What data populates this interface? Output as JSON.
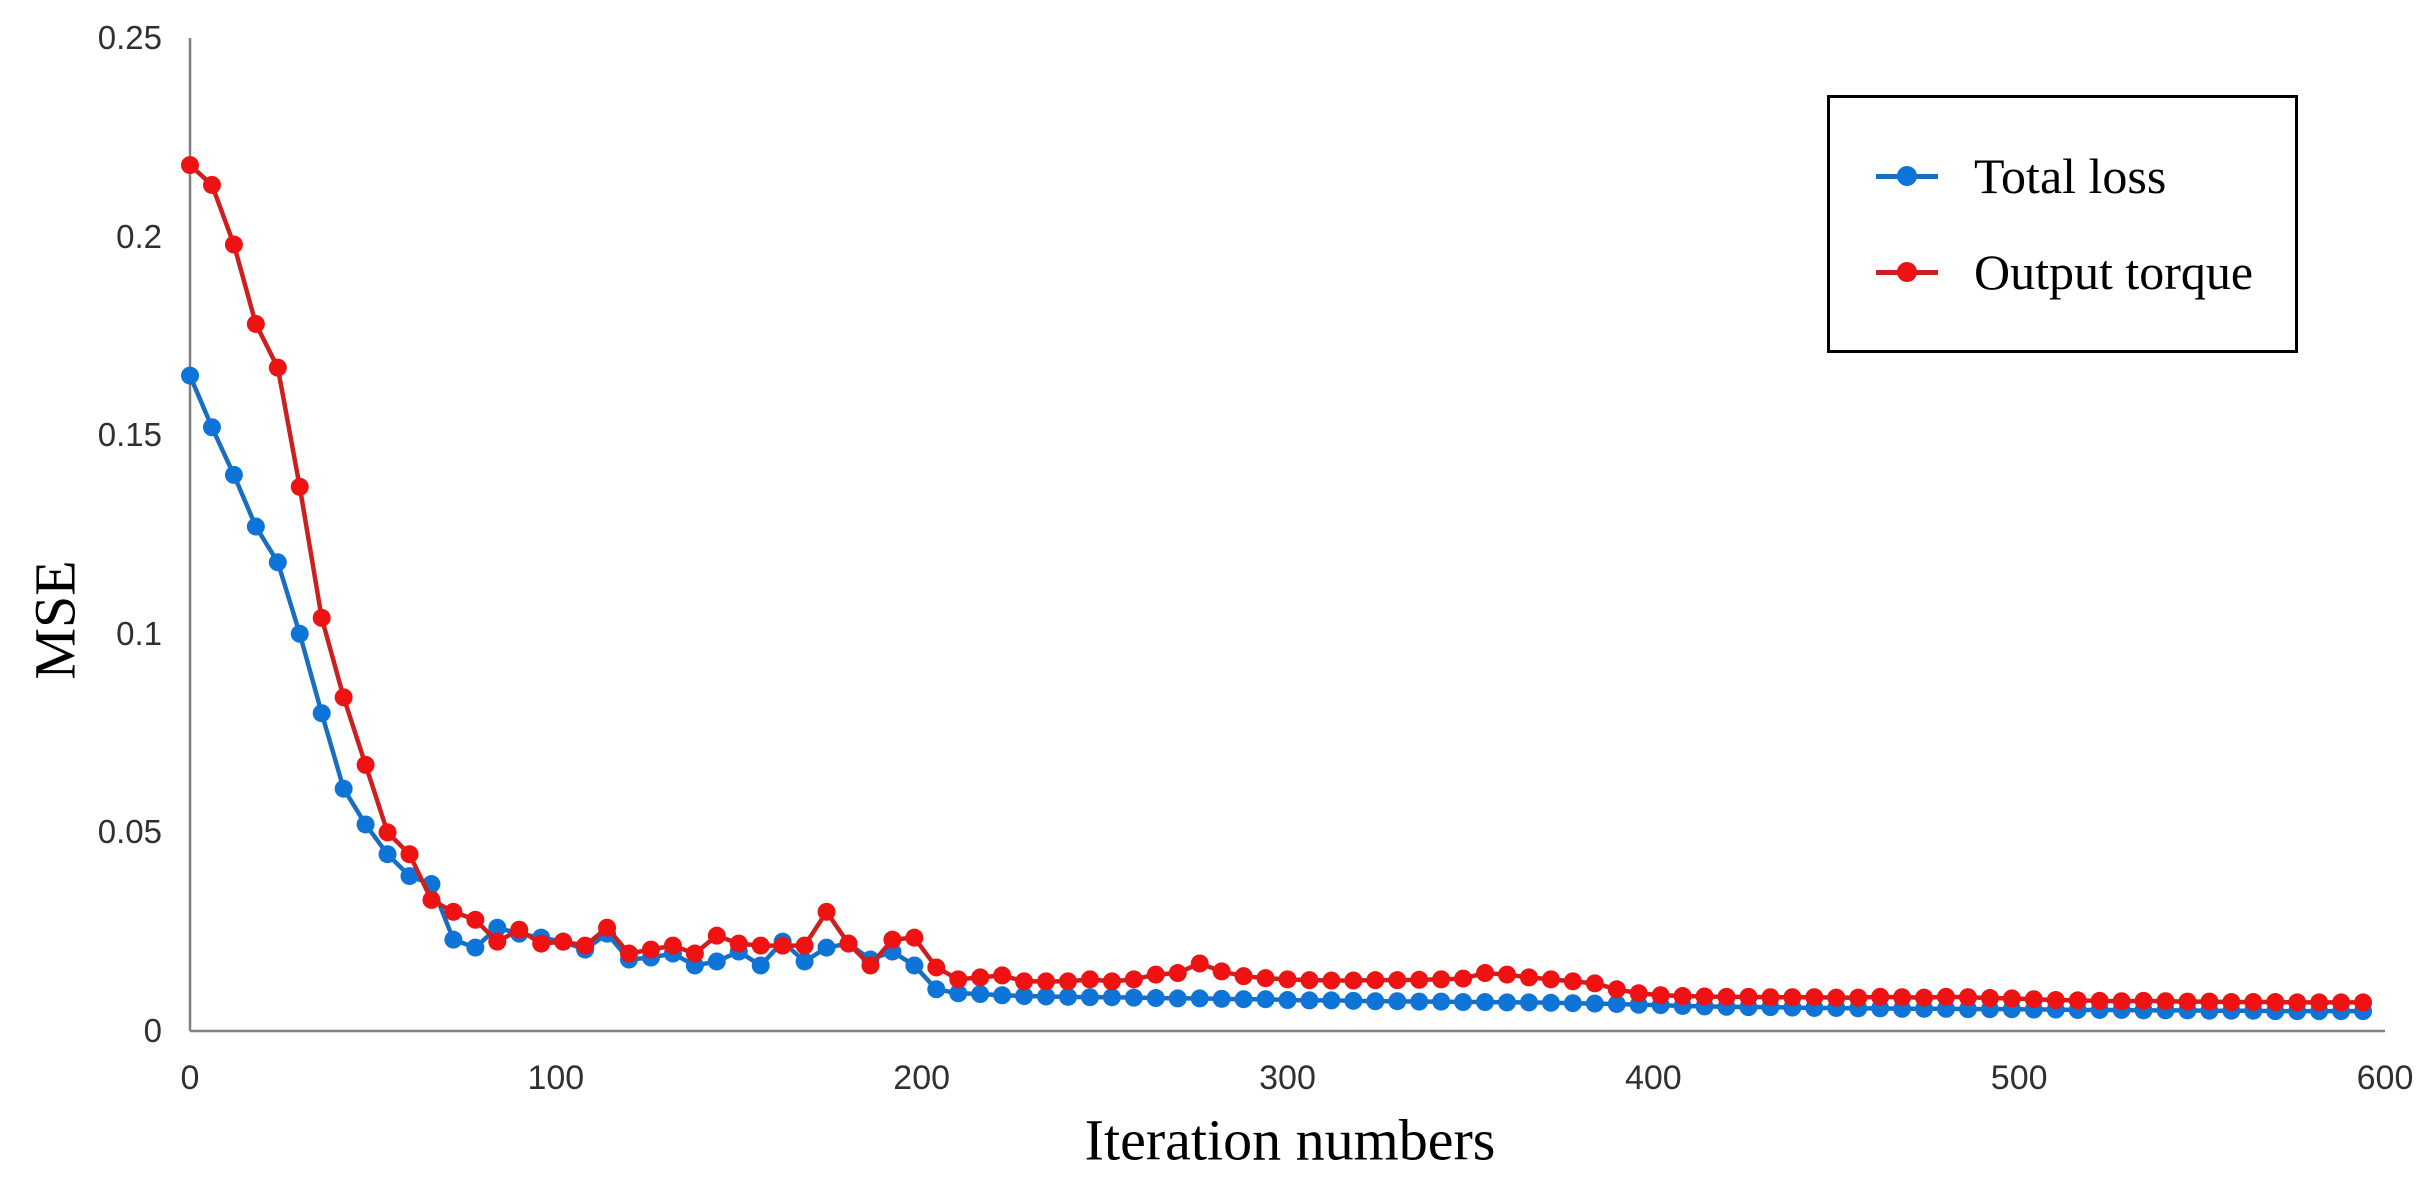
{
  "chart_data": {
    "type": "line",
    "title": "",
    "xlabel": "Iteration numbers",
    "ylabel": "MSE",
    "xlim": [
      0,
      600
    ],
    "ylim": [
      0,
      0.25
    ],
    "grid": false,
    "legend_position": "top-right",
    "x_ticks": [
      0,
      100,
      200,
      300,
      400,
      500,
      600
    ],
    "x_tick_labels": [
      "0",
      "100",
      "200",
      "300",
      "400",
      "500",
      "600"
    ],
    "y_ticks": [
      0,
      0.05,
      0.1,
      0.15,
      0.2,
      0.25
    ],
    "y_tick_labels": [
      "0",
      "0.05",
      "0.1",
      "0.15",
      "0.2",
      "0.25"
    ],
    "x": [
      0,
      6,
      12,
      18,
      24,
      30,
      36,
      42,
      48,
      54,
      60,
      66,
      72,
      78,
      84,
      90,
      96,
      102,
      108,
      114,
      120,
      126,
      132,
      138,
      144,
      150,
      156,
      162,
      168,
      174,
      180,
      186,
      192,
      198,
      204,
      210,
      216,
      222,
      228,
      234,
      240,
      246,
      252,
      258,
      264,
      270,
      276,
      282,
      288,
      294,
      300,
      306,
      312,
      318,
      324,
      330,
      336,
      342,
      348,
      354,
      360,
      366,
      372,
      378,
      384,
      390,
      396,
      402,
      408,
      414,
      420,
      426,
      432,
      438,
      444,
      450,
      456,
      462,
      468,
      474,
      480,
      486,
      492,
      498,
      504,
      510,
      516,
      522,
      528,
      534,
      540,
      546,
      552,
      558,
      564,
      570,
      576,
      582,
      588,
      594
    ],
    "series": [
      {
        "name": "Total loss",
        "line_color": "#1a6ec0",
        "marker_color": "#0f74d8",
        "values": [
          0.165,
          0.152,
          0.14,
          0.127,
          0.118,
          0.1,
          0.08,
          0.061,
          0.052,
          0.0445,
          0.039,
          0.037,
          0.023,
          0.021,
          0.026,
          0.0245,
          0.0235,
          0.0225,
          0.0205,
          0.0245,
          0.018,
          0.0185,
          0.0195,
          0.0165,
          0.0175,
          0.02,
          0.0165,
          0.0225,
          0.0175,
          0.021,
          0.022,
          0.018,
          0.02,
          0.0165,
          0.0105,
          0.0095,
          0.0093,
          0.009,
          0.0088,
          0.0087,
          0.0086,
          0.0085,
          0.0085,
          0.0084,
          0.0083,
          0.0082,
          0.0082,
          0.0081,
          0.008,
          0.008,
          0.0078,
          0.0077,
          0.0077,
          0.0076,
          0.0075,
          0.0075,
          0.0074,
          0.0074,
          0.0073,
          0.0073,
          0.0072,
          0.0072,
          0.0071,
          0.007,
          0.0069,
          0.0068,
          0.0066,
          0.0065,
          0.0063,
          0.0062,
          0.0061,
          0.006,
          0.006,
          0.0059,
          0.0058,
          0.0058,
          0.0057,
          0.0057,
          0.0056,
          0.0056,
          0.0056,
          0.0055,
          0.0055,
          0.0055,
          0.0054,
          0.0054,
          0.0053,
          0.0053,
          0.0053,
          0.0052,
          0.0052,
          0.0052,
          0.0051,
          0.0051,
          0.0051,
          0.005,
          0.005,
          0.005,
          0.005,
          0.005
        ]
      },
      {
        "name": "Output torque",
        "line_color": "#cc2020",
        "marker_color": "#ee1212",
        "values": [
          0.218,
          0.213,
          0.198,
          0.178,
          0.167,
          0.137,
          0.104,
          0.084,
          0.067,
          0.05,
          0.0445,
          0.033,
          0.03,
          0.028,
          0.0225,
          0.0255,
          0.022,
          0.0225,
          0.0215,
          0.026,
          0.0195,
          0.0205,
          0.0215,
          0.0195,
          0.024,
          0.022,
          0.0215,
          0.0215,
          0.0215,
          0.03,
          0.022,
          0.0165,
          0.023,
          0.0235,
          0.016,
          0.013,
          0.0135,
          0.014,
          0.0125,
          0.0125,
          0.0125,
          0.013,
          0.0125,
          0.013,
          0.0142,
          0.0146,
          0.017,
          0.015,
          0.0138,
          0.0133,
          0.013,
          0.0128,
          0.0127,
          0.0127,
          0.0128,
          0.0128,
          0.0129,
          0.013,
          0.0132,
          0.0146,
          0.0142,
          0.0135,
          0.013,
          0.0125,
          0.012,
          0.0105,
          0.0095,
          0.009,
          0.0088,
          0.0087,
          0.0086,
          0.0086,
          0.0085,
          0.0085,
          0.0085,
          0.0084,
          0.0084,
          0.0086,
          0.0085,
          0.0084,
          0.0086,
          0.0085,
          0.0083,
          0.0082,
          0.008,
          0.0078,
          0.0077,
          0.0076,
          0.0075,
          0.0076,
          0.0075,
          0.0074,
          0.0074,
          0.0073,
          0.0073,
          0.0073,
          0.0072,
          0.0072,
          0.0072,
          0.0072
        ]
      }
    ]
  },
  "colors": {
    "background": "#ffffff",
    "axis_line": "#808080",
    "tick_text": "#303030",
    "label_text": "#000000",
    "legend_border": "#000000"
  }
}
